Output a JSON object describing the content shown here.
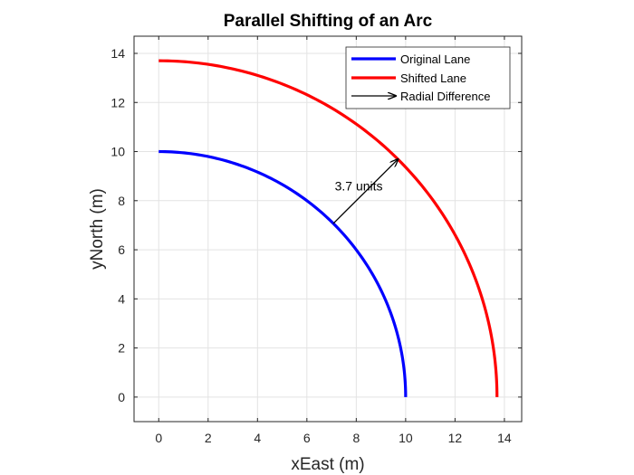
{
  "chart_data": {
    "type": "line",
    "title": "Parallel Shifting of an Arc",
    "xlabel": "xEast (m)",
    "ylabel": "yNorth (m)",
    "xlim": [
      -1,
      14.7
    ],
    "ylim": [
      -1,
      14.7
    ],
    "xticks": [
      0,
      2,
      4,
      6,
      8,
      10,
      12,
      14
    ],
    "yticks": [
      0,
      2,
      4,
      6,
      8,
      10,
      12,
      14
    ],
    "grid": true,
    "legend_position": "top-right",
    "series": [
      {
        "name": "Original Lane",
        "kind": "arc",
        "center": [
          0,
          0
        ],
        "radius": 10,
        "angle_start_deg": 0,
        "angle_end_deg": 90,
        "color": "#0000ff"
      },
      {
        "name": "Shifted Lane",
        "kind": "arc",
        "center": [
          0,
          0
        ],
        "radius": 13.7,
        "angle_start_deg": 0,
        "angle_end_deg": 90,
        "color": "#ff0000"
      },
      {
        "name": "Radial Difference",
        "kind": "arrow",
        "from": [
          7.07,
          7.07
        ],
        "to": [
          9.69,
          9.69
        ],
        "color": "#000000"
      }
    ],
    "annotations": [
      {
        "text": "3.7 units",
        "x": 8.1,
        "y": 8.6
      }
    ]
  }
}
